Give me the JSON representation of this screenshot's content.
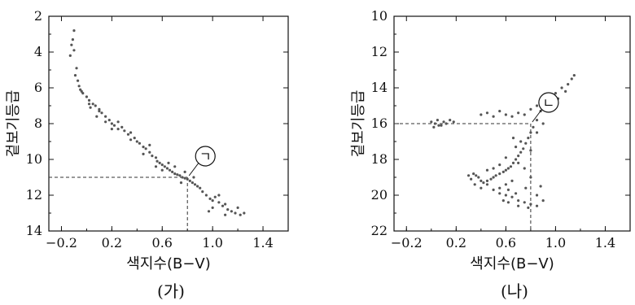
{
  "chart_data": [
    {
      "type": "scatter",
      "caption": "(가)",
      "xlabel": "색지수(B−V)",
      "ylabel": "겉보기등급",
      "xlim": [
        -0.3,
        1.6
      ],
      "ylim": [
        14,
        2
      ],
      "y_inverted": true,
      "x_ticks": [
        "−0.2",
        "0.2",
        "0.6",
        "1.0",
        "1.4"
      ],
      "y_ticks": [
        "2",
        "4",
        "6",
        "8",
        "10",
        "12",
        "14"
      ],
      "callout": {
        "label": "ㄱ",
        "x": 0.8,
        "y": 11.0
      },
      "guides": {
        "x": 0.8,
        "y": 11.0
      },
      "series": [
        {
          "points": [
            [
              -0.1,
              2.8
            ],
            [
              -0.11,
              3.3
            ],
            [
              -0.12,
              3.6
            ],
            [
              -0.1,
              3.9
            ],
            [
              -0.13,
              4.2
            ],
            [
              -0.08,
              4.9
            ],
            [
              -0.09,
              5.3
            ],
            [
              -0.07,
              5.6
            ],
            [
              -0.06,
              5.9
            ],
            [
              -0.05,
              6.1
            ],
            [
              -0.03,
              6.3
            ],
            [
              0.0,
              6.5
            ],
            [
              0.02,
              6.7
            ],
            [
              0.05,
              6.9
            ],
            [
              0.03,
              7.1
            ],
            [
              0.07,
              7.0
            ],
            [
              0.1,
              7.2
            ],
            [
              0.12,
              7.4
            ],
            [
              0.08,
              7.6
            ],
            [
              0.15,
              7.6
            ],
            [
              0.18,
              7.8
            ],
            [
              0.2,
              8.0
            ],
            [
              0.22,
              8.1
            ],
            [
              0.25,
              7.9
            ],
            [
              0.28,
              8.2
            ],
            [
              0.3,
              8.4
            ],
            [
              0.33,
              8.6
            ],
            [
              0.35,
              8.5
            ],
            [
              0.38,
              8.8
            ],
            [
              0.4,
              9.0
            ],
            [
              0.42,
              9.1
            ],
            [
              0.45,
              9.3
            ],
            [
              0.47,
              9.4
            ],
            [
              0.5,
              9.6
            ],
            [
              0.52,
              9.8
            ],
            [
              0.55,
              9.9
            ],
            [
              0.56,
              10.1
            ],
            [
              0.58,
              10.2
            ],
            [
              0.6,
              10.3
            ],
            [
              0.62,
              10.4
            ],
            [
              0.64,
              10.5
            ],
            [
              0.66,
              10.6
            ],
            [
              0.68,
              10.7
            ],
            [
              0.7,
              10.8
            ],
            [
              0.72,
              10.85
            ],
            [
              0.74,
              10.9
            ],
            [
              0.76,
              11.0
            ],
            [
              0.78,
              11.05
            ],
            [
              0.8,
              11.1
            ],
            [
              0.82,
              11.2
            ],
            [
              0.84,
              11.3
            ],
            [
              0.86,
              11.4
            ],
            [
              0.88,
              11.5
            ],
            [
              0.9,
              11.6
            ],
            [
              0.6,
              10.6
            ],
            [
              0.65,
              10.2
            ],
            [
              0.7,
              10.4
            ],
            [
              0.75,
              11.3
            ],
            [
              0.78,
              10.7
            ],
            [
              0.85,
              11.0
            ],
            [
              0.5,
              9.2
            ],
            [
              0.45,
              9.7
            ],
            [
              0.55,
              10.4
            ],
            [
              0.35,
              8.9
            ],
            [
              0.25,
              8.3
            ],
            [
              0.15,
              7.9
            ],
            [
              0.1,
              7.3
            ],
            [
              0.02,
              6.9
            ],
            [
              -0.04,
              6.2
            ],
            [
              0.2,
              8.3
            ],
            [
              0.92,
              11.8
            ],
            [
              0.95,
              12.0
            ],
            [
              0.98,
              12.2
            ],
            [
              1.0,
              12.3
            ],
            [
              1.02,
              12.1
            ],
            [
              1.05,
              12.4
            ],
            [
              1.08,
              12.6
            ],
            [
              1.1,
              12.5
            ],
            [
              1.12,
              12.8
            ],
            [
              1.15,
              12.9
            ],
            [
              1.18,
              13.0
            ],
            [
              1.2,
              12.7
            ],
            [
              1.22,
              13.1
            ],
            [
              1.25,
              13.0
            ],
            [
              1.0,
              12.7
            ],
            [
              1.05,
              12.0
            ],
            [
              0.97,
              12.9
            ],
            [
              1.1,
              13.1
            ]
          ]
        }
      ]
    },
    {
      "type": "scatter",
      "caption": "(나)",
      "xlabel": "색지수(B−V)",
      "ylabel": "겉보기등급",
      "xlim": [
        -0.3,
        1.6
      ],
      "ylim": [
        22,
        10
      ],
      "y_inverted": true,
      "x_ticks": [
        "−0.2",
        "0.2",
        "0.6",
        "1.0",
        "1.4"
      ],
      "y_ticks": [
        "10",
        "12",
        "14",
        "16",
        "18",
        "20",
        "22"
      ],
      "callout": {
        "label": "ㄴ",
        "x": 0.8,
        "y": 16.0
      },
      "guides": {
        "x": 0.8,
        "y": 16.0
      },
      "series": [
        {
          "points": [
            [
              0.0,
              15.9
            ],
            [
              0.03,
              16.0
            ],
            [
              0.05,
              15.8
            ],
            [
              0.08,
              16.1
            ],
            [
              0.1,
              15.9
            ],
            [
              0.12,
              16.0
            ],
            [
              0.15,
              15.8
            ],
            [
              0.18,
              15.9
            ],
            [
              0.02,
              16.2
            ],
            [
              0.06,
              16.1
            ],
            [
              0.4,
              15.5
            ],
            [
              0.45,
              15.4
            ],
            [
              0.5,
              15.6
            ],
            [
              0.55,
              15.3
            ],
            [
              0.6,
              15.5
            ],
            [
              0.65,
              15.6
            ],
            [
              0.7,
              15.4
            ],
            [
              0.75,
              15.5
            ],
            [
              0.8,
              15.2
            ],
            [
              0.85,
              15.0
            ],
            [
              0.9,
              14.8
            ],
            [
              0.95,
              14.5
            ],
            [
              1.0,
              14.3
            ],
            [
              1.05,
              14.0
            ],
            [
              1.1,
              13.8
            ],
            [
              1.13,
              13.5
            ],
            [
              1.15,
              13.3
            ],
            [
              1.08,
              14.2
            ],
            [
              1.02,
              14.6
            ],
            [
              0.88,
              15.3
            ],
            [
              0.85,
              15.8
            ],
            [
              0.82,
              16.2
            ],
            [
              0.8,
              16.5
            ],
            [
              0.78,
              16.8
            ],
            [
              0.76,
              17.1
            ],
            [
              0.74,
              17.4
            ],
            [
              0.72,
              17.6
            ],
            [
              0.7,
              17.8
            ],
            [
              0.68,
              18.0
            ],
            [
              0.66,
              18.2
            ],
            [
              0.64,
              18.4
            ],
            [
              0.62,
              18.5
            ],
            [
              0.6,
              18.6
            ],
            [
              0.58,
              18.7
            ],
            [
              0.55,
              18.8
            ],
            [
              0.52,
              18.9
            ],
            [
              0.5,
              19.0
            ],
            [
              0.48,
              19.1
            ],
            [
              0.45,
              19.2
            ],
            [
              0.42,
              19.3
            ],
            [
              0.4,
              19.2
            ],
            [
              0.38,
              19.0
            ],
            [
              0.36,
              18.9
            ],
            [
              0.34,
              18.8
            ],
            [
              0.32,
              19.1
            ],
            [
              0.3,
              18.9
            ],
            [
              0.35,
              19.4
            ],
            [
              0.4,
              19.6
            ],
            [
              0.45,
              19.4
            ],
            [
              0.5,
              19.7
            ],
            [
              0.55,
              19.9
            ],
            [
              0.6,
              20.0
            ],
            [
              0.65,
              20.1
            ],
            [
              0.7,
              20.3
            ],
            [
              0.75,
              20.4
            ],
            [
              0.8,
              20.5
            ],
            [
              0.85,
              20.6
            ],
            [
              0.9,
              20.3
            ],
            [
              0.58,
              20.3
            ],
            [
              0.62,
              20.4
            ],
            [
              0.7,
              20.6
            ],
            [
              0.78,
              20.7
            ],
            [
              0.68,
              19.9
            ],
            [
              0.75,
              18.5
            ],
            [
              0.8,
              17.5
            ],
            [
              0.72,
              17.0
            ],
            [
              0.68,
              17.3
            ],
            [
              0.66,
              16.8
            ],
            [
              0.85,
              16.5
            ],
            [
              0.9,
              16.0
            ],
            [
              0.6,
              17.9
            ],
            [
              0.55,
              18.3
            ],
            [
              0.5,
              18.5
            ],
            [
              0.45,
              18.6
            ],
            [
              0.7,
              18.2
            ],
            [
              0.65,
              19.2
            ],
            [
              0.6,
              19.4
            ],
            [
              0.55,
              19.6
            ],
            [
              0.62,
              19.7
            ],
            [
              0.85,
              20.0
            ],
            [
              0.88,
              19.5
            ],
            [
              0.8,
              19.0
            ],
            [
              0.76,
              19.6
            ]
          ]
        }
      ]
    }
  ],
  "panels": [
    {
      "callout_label": "ㄱ",
      "caption": "(가)"
    },
    {
      "callout_label": "ㄴ",
      "caption": "(나)"
    }
  ]
}
